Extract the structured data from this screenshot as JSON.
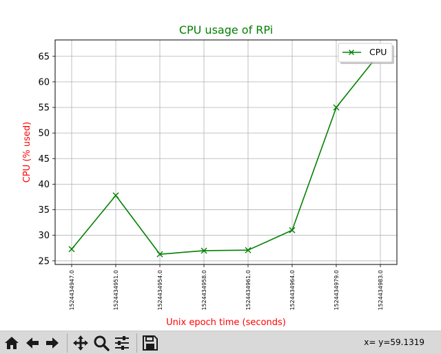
{
  "chart_data": {
    "type": "line",
    "title": "CPU usage of RPi",
    "xlabel": "Unix epoch time (seconds)",
    "ylabel": "CPU (% used)",
    "categories": [
      "1524434947.0",
      "1524434951.0",
      "1524434954.0",
      "1524434958.0",
      "1524434961.0",
      "1524434964.0",
      "1524434979.0",
      "1524434983.0"
    ],
    "series": [
      {
        "name": "CPU",
        "values": [
          27.3,
          37.8,
          26.3,
          27.0,
          27.1,
          31.0,
          55.0,
          65.8
        ]
      }
    ],
    "ylim": [
      24.3,
      68.2
    ],
    "yticks": [
      25,
      30,
      35,
      40,
      45,
      50,
      55,
      60,
      65
    ],
    "grid": true,
    "legend": "top-right",
    "colors": {
      "line": "#008000",
      "title": "#008000",
      "axis_labels": "#ff0000"
    }
  },
  "toolbar": {
    "buttons": [
      {
        "name": "home-icon"
      },
      {
        "name": "back-icon"
      },
      {
        "name": "forward-icon"
      },
      {
        "name": "pan-icon"
      },
      {
        "name": "zoom-icon"
      },
      {
        "name": "configure-subplots-icon"
      },
      {
        "name": "save-icon"
      }
    ],
    "coords": "x= y=59.1319"
  }
}
